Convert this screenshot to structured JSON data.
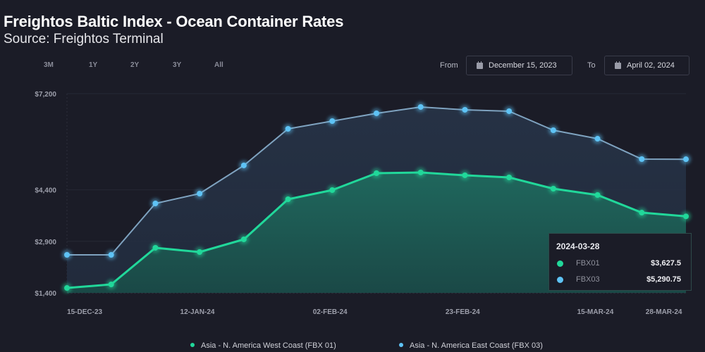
{
  "header": {
    "title": "Freightos Baltic Index - Ocean Container Rates",
    "subtitle": "Source: Freightos Terminal"
  },
  "range_buttons": [
    "3M",
    "1Y",
    "2Y",
    "3Y",
    "All"
  ],
  "date_range": {
    "from_label": "From",
    "from_value": "December 15, 2023",
    "to_label": "To",
    "to_value": "April 02, 2024",
    "calendar_icon": "calendar-icon"
  },
  "tooltip": {
    "date": "2024-03-28",
    "rows": [
      {
        "name": "FBX01",
        "value": "$3,627.5",
        "color": "#21d89a"
      },
      {
        "name": "FBX03",
        "value": "$5,290.75",
        "color": "#5ec3f5"
      }
    ]
  },
  "legend": [
    {
      "label": "Asia - N. America West Coast (FBX 01)",
      "color": "#21d89a"
    },
    {
      "label": "Asia - N. America East Coast (FBX 03)",
      "color": "#5ec3f5"
    }
  ],
  "chart_data": {
    "type": "area",
    "title": "Freightos Baltic Index - Ocean Container Rates",
    "subtitle": "Source: Freightos Terminal",
    "xlabel": "",
    "ylabel": "",
    "ylim": [
      1400,
      7200
    ],
    "yticks": [
      {
        "value": 1400,
        "label": "$1,400"
      },
      {
        "value": 2900,
        "label": "$2,900"
      },
      {
        "value": 4400,
        "label": "$4,400"
      },
      {
        "value": 7200,
        "label": "$7,200"
      }
    ],
    "xticks": [
      {
        "index": 0.4,
        "label": "15-DEC-23"
      },
      {
        "index": 2.95,
        "label": "12-JAN-24"
      },
      {
        "index": 5.95,
        "label": "02-FEB-24"
      },
      {
        "index": 8.95,
        "label": "23-FEB-24"
      },
      {
        "index": 11.95,
        "label": "15-MAR-24"
      },
      {
        "index": 13.5,
        "label": "28-MAR-24"
      }
    ],
    "grid": true,
    "legend_position": "bottom-center",
    "point_count": 15,
    "series": [
      {
        "name": "Asia - N. America West Coast (FBX 01)",
        "key": "FBX01",
        "color": "#21d89a",
        "values": [
          1543,
          1646,
          2712,
          2589,
          2958,
          4126,
          4392,
          4884,
          4905,
          4823,
          4761,
          4433,
          4249,
          3736,
          3627.5
        ]
      },
      {
        "name": "Asia - N. America East Coast (FBX 03)",
        "key": "FBX03",
        "color": "#5ec3f5",
        "values": [
          2507,
          2507,
          4003,
          4290,
          5110,
          6175,
          6401,
          6627,
          6811,
          6729,
          6688,
          6134,
          5888,
          5294,
          5290.75
        ]
      }
    ],
    "highlighted_point": {
      "date": "2024-03-28",
      "FBX01": 3627.5,
      "FBX03": 5290.75
    }
  }
}
